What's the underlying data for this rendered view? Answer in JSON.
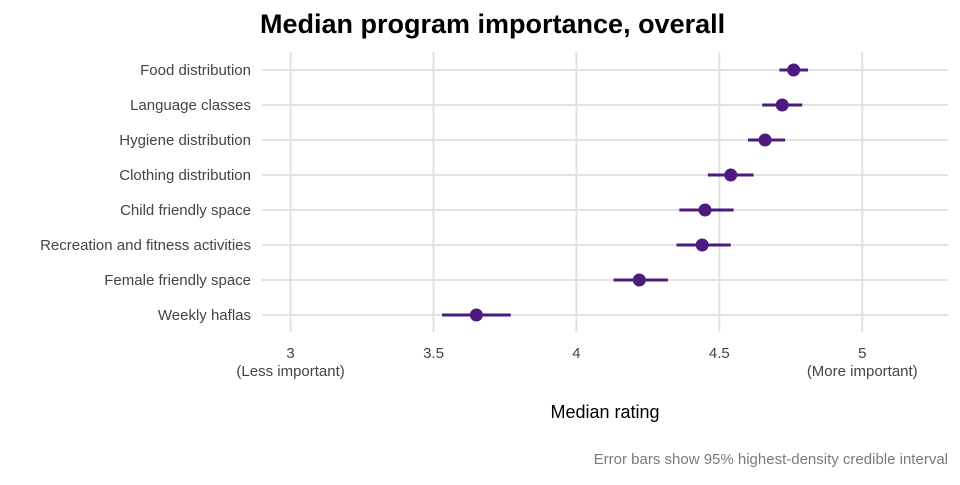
{
  "chart_data": {
    "type": "scatter",
    "title": "Median program importance, overall",
    "xlabel": "Median rating",
    "ylabel": "",
    "caption": "Error bars show 95% highest-density credible interval",
    "xlim": [
      2.9,
      5.3
    ],
    "x_ticks": [
      {
        "value": 3,
        "label": "3",
        "sublabel": "(Less important)"
      },
      {
        "value": 3.5,
        "label": "3.5",
        "sublabel": ""
      },
      {
        "value": 4,
        "label": "4",
        "sublabel": ""
      },
      {
        "value": 4.5,
        "label": "4.5",
        "sublabel": ""
      },
      {
        "value": 5,
        "label": "5",
        "sublabel": "(More important)"
      }
    ],
    "grid": true,
    "color": "#4d1a7f",
    "points": [
      {
        "category": "Food distribution",
        "median": 4.76,
        "low": 4.71,
        "high": 4.81
      },
      {
        "category": "Language classes",
        "median": 4.72,
        "low": 4.65,
        "high": 4.79
      },
      {
        "category": "Hygiene distribution",
        "median": 4.66,
        "low": 4.6,
        "high": 4.73
      },
      {
        "category": "Clothing distribution",
        "median": 4.54,
        "low": 4.46,
        "high": 4.62
      },
      {
        "category": "Child friendly space",
        "median": 4.45,
        "low": 4.36,
        "high": 4.55
      },
      {
        "category": "Recreation and fitness activities",
        "median": 4.44,
        "low": 4.35,
        "high": 4.54
      },
      {
        "category": "Female friendly space",
        "median": 4.22,
        "low": 4.13,
        "high": 4.32
      },
      {
        "category": "Weekly haflas",
        "median": 3.65,
        "low": 3.53,
        "high": 3.77
      }
    ]
  }
}
